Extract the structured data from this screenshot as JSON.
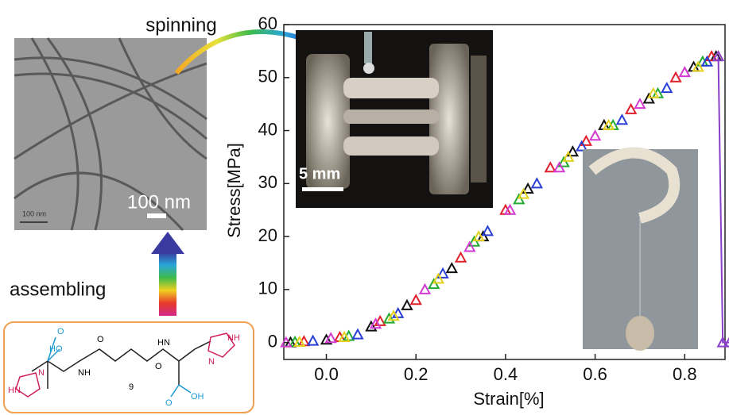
{
  "chart_data": {
    "type": "scatter",
    "xlabel": "Strain[%]",
    "ylabel": "Stress[MPa]",
    "xlim": [
      -0.095,
      0.89
    ],
    "ylim": [
      -3.2,
      60
    ],
    "xticks": [
      {
        "value": 0,
        "label": "0.0"
      },
      0.2,
      0.4,
      0.6,
      0.8
    ],
    "yticks": [
      0,
      10,
      20,
      30,
      40,
      50,
      60
    ],
    "series": [
      {
        "color": "#111111",
        "x": [
          -0.08,
          0.0,
          0.1,
          0.18,
          0.28,
          0.35,
          0.45,
          0.55,
          0.62,
          0.72,
          0.82,
          0.87
        ],
        "values": [
          0,
          0.5,
          3,
          7,
          14,
          20,
          29,
          36,
          41,
          46,
          52,
          54
        ]
      },
      {
        "color": "#e0202a",
        "x": [
          -0.05,
          0.03,
          0.12,
          0.2,
          0.3,
          0.4,
          0.5,
          0.58,
          0.68,
          0.78,
          0.86
        ],
        "values": [
          0.2,
          1,
          4,
          8,
          16,
          25,
          33,
          38,
          44,
          50,
          54
        ]
      },
      {
        "color": "#22aa33",
        "x": [
          -0.07,
          0.05,
          0.14,
          0.24,
          0.33,
          0.43,
          0.53,
          0.64,
          0.74,
          0.84
        ],
        "values": [
          0.1,
          1.2,
          4.5,
          11,
          19,
          27,
          34,
          41,
          47,
          53
        ]
      },
      {
        "color": "#2a3fd6",
        "x": [
          -0.03,
          0.07,
          0.16,
          0.26,
          0.36,
          0.47,
          0.57,
          0.66,
          0.76,
          0.85
        ],
        "values": [
          0.3,
          1.5,
          5.5,
          13,
          21,
          30,
          37,
          42,
          48,
          53
        ]
      },
      {
        "color": "#d23ad2",
        "x": [
          -0.09,
          0.01,
          0.11,
          0.22,
          0.32,
          0.41,
          0.52,
          0.6,
          0.7,
          0.8
        ],
        "values": [
          0,
          0.8,
          3.5,
          10,
          18,
          25,
          33,
          39,
          45,
          51
        ]
      },
      {
        "color": "#e6d21e",
        "x": [
          -0.06,
          0.04,
          0.15,
          0.25,
          0.34,
          0.44,
          0.54,
          0.63,
          0.73,
          0.83
        ],
        "values": [
          0.1,
          1,
          5,
          12,
          20,
          28,
          35,
          41,
          47,
          52
        ]
      },
      {
        "color": "#8a3fc8",
        "mode": "line",
        "x": [
          0.875,
          0.885,
          0.9
        ],
        "values": [
          54,
          0,
          0
        ]
      }
    ]
  },
  "figure": {
    "spinning": "spinning",
    "assembling": "assembling",
    "scale_tem": "100 nm",
    "scale_tem_small": "100 nm",
    "scale_photo": "5 mm",
    "molecule": {
      "ho": "HO",
      "o1": "O",
      "nh1": "NH",
      "o2": "O",
      "n_sub": "9",
      "hn1": "HN",
      "o3": "O",
      "oh": "OH",
      "o4": "O",
      "nh_ring": "NH",
      "n_ring1": "N",
      "hn_ring": "HN",
      "n_ring2": "N"
    }
  }
}
